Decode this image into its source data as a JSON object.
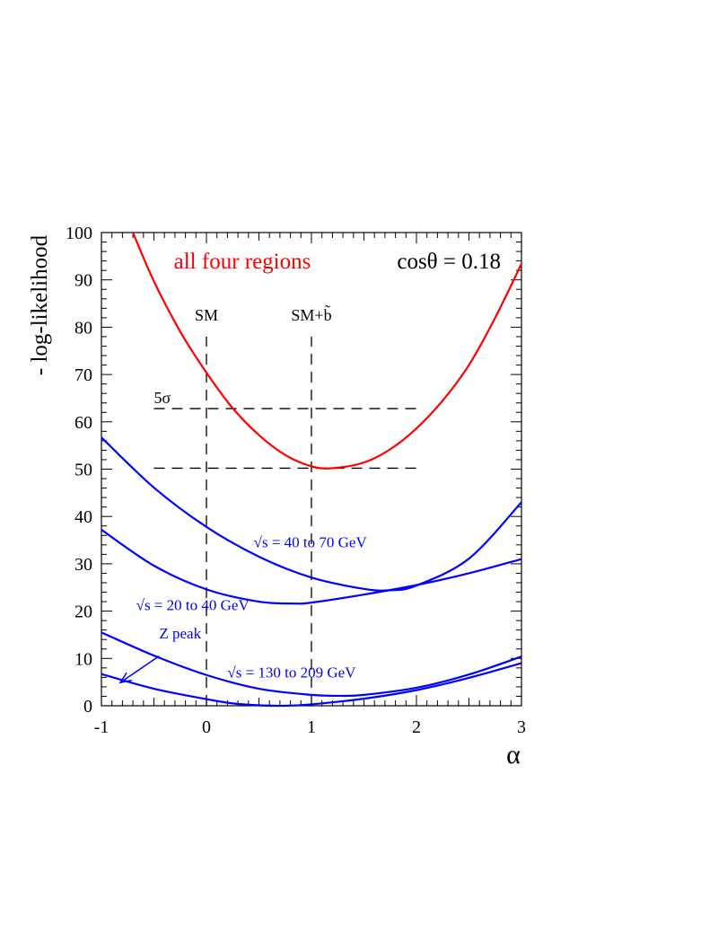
{
  "chart_data": {
    "type": "line",
    "title": "all four regions",
    "annotation": "cosθ = 0.18",
    "xlabel": "α",
    "ylabel": "- log-likelihood",
    "xlim": [
      -1,
      3
    ],
    "ylim": [
      0,
      100
    ],
    "x_ticks": [
      -1,
      0,
      1,
      2,
      3
    ],
    "y_ticks": [
      0,
      10,
      20,
      30,
      40,
      50,
      60,
      70,
      80,
      90,
      100
    ],
    "grid": false,
    "colors": {
      "combined": "#ff0000",
      "region": "#0000ff",
      "reference": "#000000",
      "text": "#000000"
    },
    "series": [
      {
        "name": "all four regions",
        "color": "#ff0000",
        "x": [
          -0.7,
          -0.5,
          -0.25,
          0,
          0.25,
          0.5,
          0.75,
          1.0,
          1.2,
          1.5,
          1.75,
          2.0,
          2.25,
          2.5,
          2.75,
          3.0
        ],
        "y": [
          100,
          89.7,
          79.1,
          70.4,
          62.9,
          57.2,
          53.0,
          50.6,
          50.2,
          51.4,
          54.2,
          58.6,
          64.5,
          72.0,
          82.0,
          93.4
        ]
      },
      {
        "name": "√s = 40 to 70 GeV",
        "color": "#0000ff",
        "x": [
          -1,
          -0.5,
          0,
          0.5,
          1.0,
          1.5,
          1.75,
          2.0,
          2.5,
          3.0
        ],
        "y": [
          56.7,
          46.1,
          37.8,
          31.5,
          27.1,
          24.7,
          24.4,
          25.4,
          31.1,
          43.0
        ]
      },
      {
        "name": "√s = 20 to 40 GeV",
        "color": "#0000ff",
        "x": [
          -1,
          -0.5,
          0,
          0.5,
          0.85,
          1.0,
          1.5,
          2.0,
          2.5,
          3.0
        ],
        "y": [
          37.2,
          29.6,
          24.6,
          22.0,
          21.6,
          21.8,
          23.5,
          25.5,
          28.0,
          31.0
        ]
      },
      {
        "name": "√s = 130 to 209 GeV",
        "color": "#0000ff",
        "x": [
          -1,
          -0.5,
          0,
          0.5,
          1.0,
          1.25,
          1.5,
          2.0,
          2.5,
          3.0
        ],
        "y": [
          15.5,
          10.6,
          6.5,
          3.6,
          2.3,
          2.1,
          2.3,
          3.8,
          6.6,
          10.4
        ]
      },
      {
        "name": "Z peak",
        "color": "#0000ff",
        "x": [
          -1,
          -0.5,
          0,
          0.25,
          0.5,
          0.75,
          1.0,
          1.5,
          2.0,
          2.5,
          3.0
        ],
        "y": [
          6.7,
          3.6,
          1.4,
          0.5,
          0.1,
          0.0,
          0.3,
          1.5,
          3.3,
          5.9,
          9.0
        ]
      }
    ],
    "reference_lines": [
      {
        "label": "SM",
        "axis": "x",
        "value": 0,
        "from": 0,
        "to": 78
      },
      {
        "label": "SM+b̃",
        "axis": "x",
        "value": 1,
        "from": 0,
        "to": 78
      },
      {
        "label": "5σ",
        "axis": "y",
        "value": 62.8,
        "from": -0.5,
        "to": 2.0
      },
      {
        "label": "",
        "axis": "y",
        "value": 50.2,
        "from": -0.5,
        "to": 2.0
      }
    ],
    "curve_labels": [
      {
        "text": "√s = 40 to 70 GeV",
        "x": 0.45,
        "y": 33.5
      },
      {
        "text": "√s = 20 to 40 GeV",
        "x": -0.67,
        "y": 20.2
      },
      {
        "text": "Z peak",
        "x": -0.45,
        "y": 14.2
      },
      {
        "text": "√s = 130 to 209 GeV",
        "x": 0.2,
        "y": 6.0
      }
    ],
    "arrow": {
      "from": [
        -0.45,
        10.5
      ],
      "to": [
        -0.82,
        4.9
      ]
    }
  }
}
